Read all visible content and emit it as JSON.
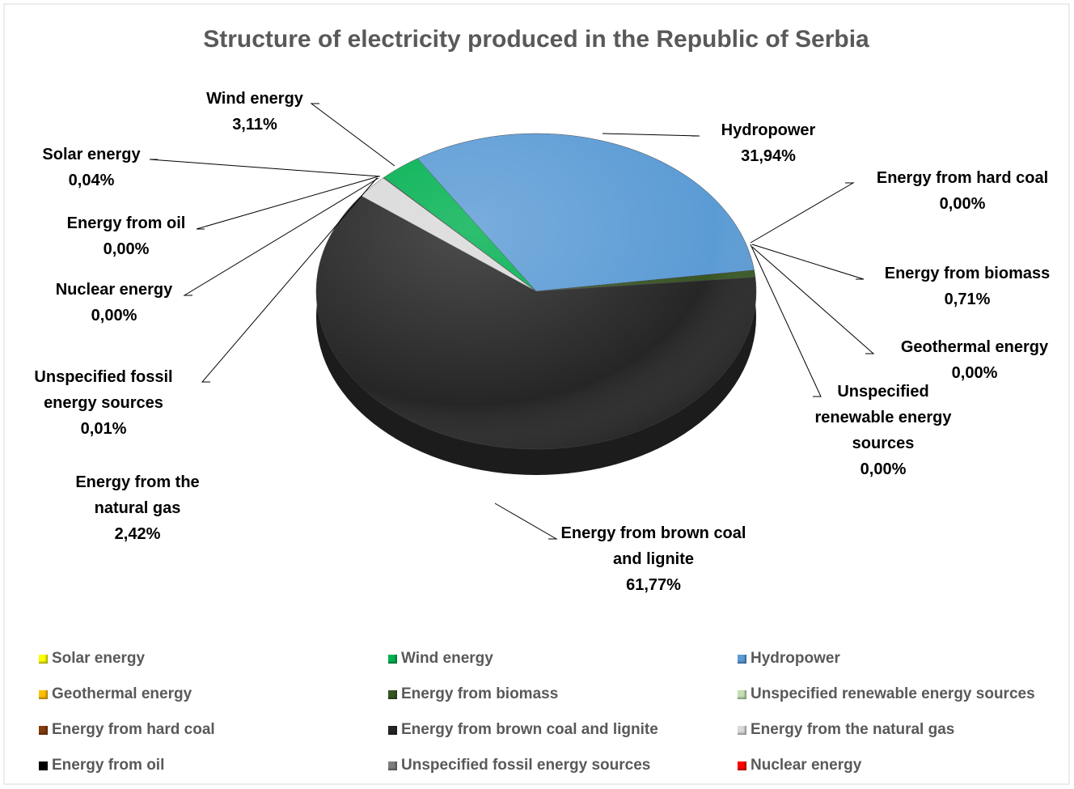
{
  "chart_data": {
    "type": "pie",
    "title": "Structure of electricity produced in the Republic of Serbia",
    "categories": [
      "Solar energy",
      "Wind energy",
      "Hydropower",
      "Geothermal energy",
      "Energy from biomass",
      "Unspecified renewable energy sources",
      "Energy from hard coal",
      "Energy from brown coal and lignite",
      "Energy from the natural gas",
      "Energy from oil",
      "Unspecified fossil energy sources",
      "Nuclear energy"
    ],
    "values": [
      0.04,
      3.11,
      31.94,
      0,
      0.71,
      0,
      0,
      61.77,
      2.42,
      0,
      0.01,
      0
    ],
    "value_labels": [
      "0,04%",
      "3,11%",
      "31,94%",
      "0,00%",
      "0,71%",
      "0,00%",
      "0,00%",
      "61,77%",
      "2,42%",
      "0,00%",
      "0,01%",
      "0,00%"
    ],
    "colors": [
      "#ffff00",
      "#00b050",
      "#5b9bd5",
      "#ffc000",
      "#375623",
      "#c5e0b4",
      "#843c0c",
      "#262626",
      "#d9d9d9",
      "#000000",
      "#7f7f7f",
      "#ff0000"
    ],
    "legend": "bottom"
  }
}
